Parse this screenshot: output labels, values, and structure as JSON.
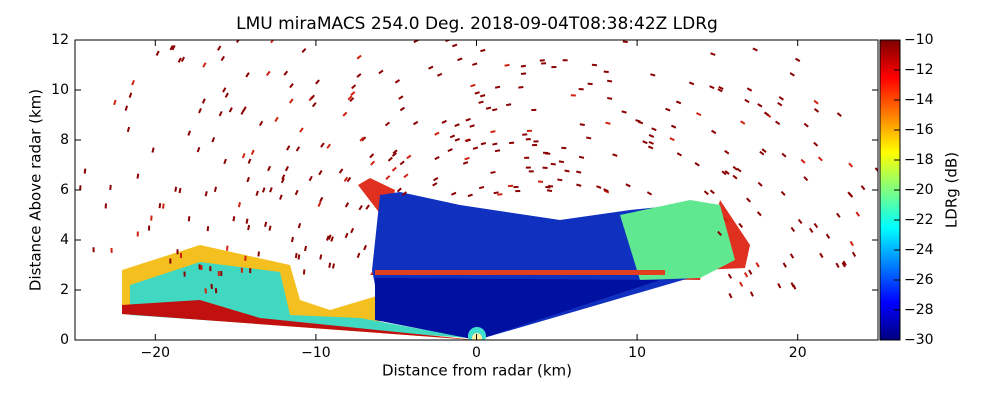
{
  "chart_data": {
    "type": "rhi",
    "title": "LMU miraMACS 254.0 Deg. 2018-09-04T08:38:42Z  LDRg",
    "x_label": "Distance from radar (km)",
    "y_label": "Distance Above radar  (km)",
    "xlim": [
      -25,
      25
    ],
    "xticks": [
      {
        "value": -20,
        "label": "−20"
      },
      {
        "value": -10,
        "label": "−10"
      },
      0,
      10,
      20
    ],
    "ylim": [
      0,
      12
    ],
    "yticks": [
      0,
      2,
      4,
      6,
      8,
      10,
      12
    ],
    "colorbar": {
      "label": "LDRg (dB)",
      "colormap": "jet",
      "lim": [
        -30,
        -10
      ],
      "ticks": [
        {
          "value": -30,
          "label": "−30"
        },
        {
          "value": -28,
          "label": "−28"
        },
        {
          "value": -26,
          "label": "−26"
        },
        {
          "value": -24,
          "label": "−24"
        },
        {
          "value": -22,
          "label": "−22"
        },
        {
          "value": -20,
          "label": "−20"
        },
        {
          "value": -18,
          "label": "−18"
        },
        {
          "value": -16,
          "label": "−16"
        },
        {
          "value": -14,
          "label": "−14"
        },
        {
          "value": -12,
          "label": "−12"
        },
        {
          "value": -10,
          "label": "−10"
        }
      ]
    }
  }
}
